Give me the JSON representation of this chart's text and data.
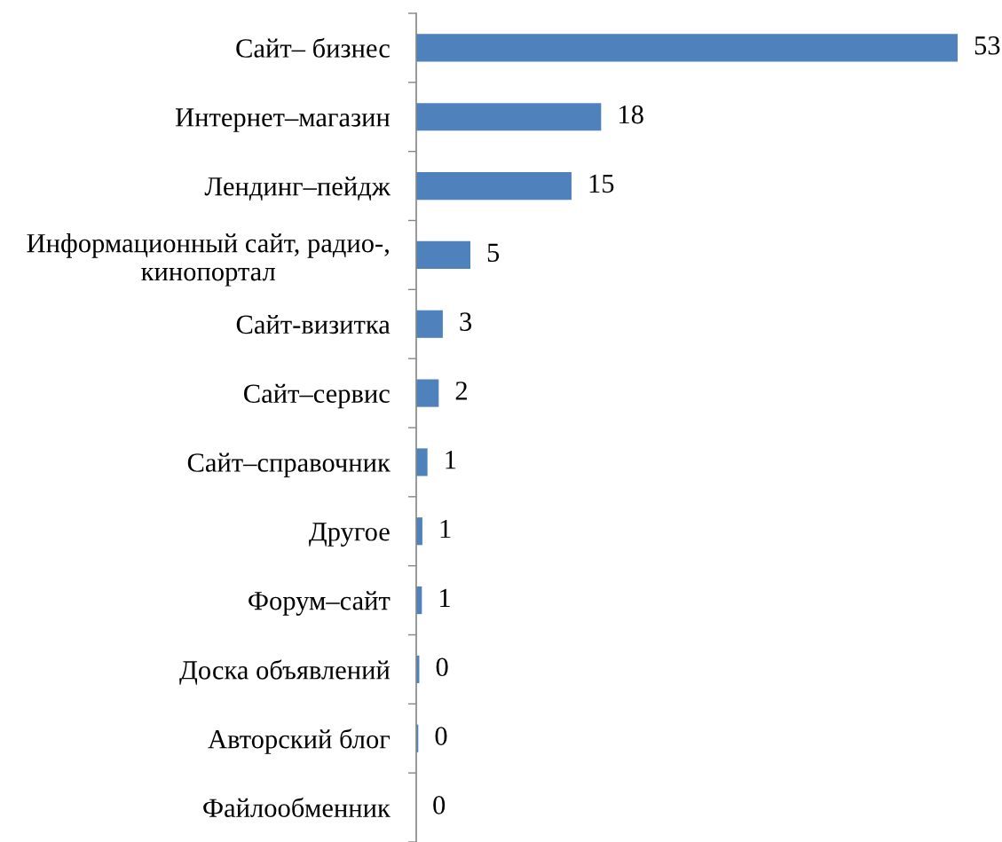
{
  "chart_data": {
    "type": "bar",
    "orientation": "horizontal",
    "categories": [
      "Сайт– бизнес",
      "Интернет–магазин",
      "Лендинг–пейдж",
      "Информационный сайт, радио-,\nкинопортал",
      "Сайт-визитка",
      "Сайт–сервис",
      "Сайт–справочник",
      "Другое",
      "Форум–сайт",
      "Доска объявлений",
      "Авторский блог",
      "Файлообменник"
    ],
    "values": [
      53,
      18.1,
      15.2,
      5.3,
      2.6,
      2.2,
      1.1,
      0.6,
      0.55,
      0.3,
      0.2,
      0
    ],
    "value_labels": [
      "53",
      "18",
      "15",
      "5",
      "3",
      "2",
      "1",
      "1",
      "1",
      "0",
      "0",
      "0"
    ],
    "color": "#4f81bd",
    "tick_labels": "y"
  }
}
